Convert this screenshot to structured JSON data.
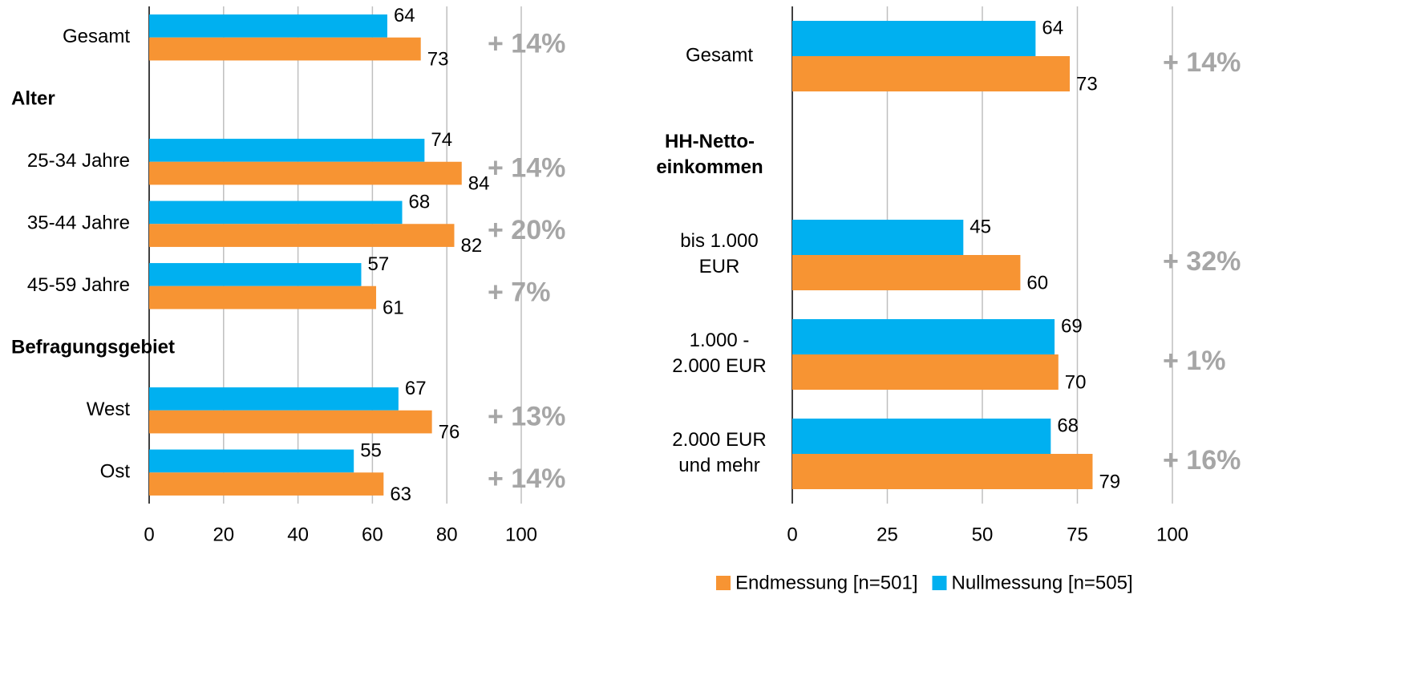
{
  "chart_data": [
    {
      "type": "bar",
      "orientation": "horizontal",
      "categories": [
        "Gesamt",
        "Alter",
        "25-34 Jahre",
        "35-44 Jahre",
        "45-59 Jahre",
        "Befragungsgebiet",
        "West",
        "Ost"
      ],
      "series": [
        {
          "color": "#00b0f0",
          "values": [
            64,
            null,
            74,
            68,
            57,
            null,
            67,
            55
          ]
        },
        {
          "color": "#f79433",
          "values": [
            73,
            null,
            84,
            82,
            61,
            null,
            76,
            63
          ]
        }
      ],
      "change_labels": [
        "+ 14%",
        null,
        "+ 14%",
        "+ 20%",
        "+ 7%",
        null,
        "+ 13%",
        "+ 14%"
      ],
      "xlim": [
        0,
        100
      ],
      "xticks": [
        0,
        20,
        40,
        60,
        80,
        100
      ],
      "grid": true,
      "legend": false
    },
    {
      "type": "bar",
      "orientation": "horizontal",
      "categories": [
        "Gesamt",
        "HH-Netto-\neinkommen",
        "bis 1.000\nEUR",
        "1.000 -\n2.000 EUR",
        "2.000 EUR\nund mehr"
      ],
      "series": [
        {
          "name": "Nullmessung [n=505]",
          "color": "#00b0f0",
          "values": [
            64,
            null,
            45,
            69,
            68
          ]
        },
        {
          "name": "Endmessung [n=501]",
          "color": "#f79433",
          "values": [
            73,
            null,
            60,
            70,
            79
          ]
        }
      ],
      "change_labels": [
        "+ 14%",
        null,
        "+ 32%",
        "+ 1%",
        "+ 16%"
      ],
      "xlim": [
        0,
        100
      ],
      "xticks": [
        0,
        25,
        50,
        75,
        100
      ],
      "grid": true,
      "legend": "bottom"
    }
  ]
}
